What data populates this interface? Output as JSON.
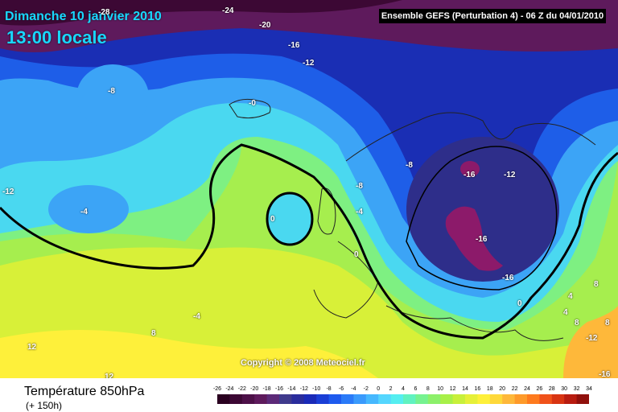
{
  "header": {
    "date": "Dimanche 10 janvier 2010",
    "time": "13:00 locale",
    "model": "Ensemble GEFS (Perturbation 4)  -  06 Z du 04/01/2010"
  },
  "copyright": "Copyright © 2008 Meteociel.fr",
  "footer": {
    "title": "Température 850hPa",
    "subtitle": "(+ 150h)"
  },
  "isotherm_labels": [
    {
      "text": "-28"
    },
    {
      "text": "-24"
    },
    {
      "text": "-20"
    },
    {
      "text": "-16"
    },
    {
      "text": "-12"
    },
    {
      "text": "-8"
    },
    {
      "text": "-0"
    },
    {
      "text": "-12"
    },
    {
      "text": "-4"
    },
    {
      "text": "0"
    },
    {
      "text": "-8"
    },
    {
      "text": "-16"
    },
    {
      "text": "-12"
    },
    {
      "text": "-8"
    },
    {
      "text": "-4"
    },
    {
      "text": "0"
    },
    {
      "text": "-16"
    },
    {
      "text": "-16"
    },
    {
      "text": "4"
    },
    {
      "text": "8"
    },
    {
      "text": "-4"
    },
    {
      "text": "8"
    },
    {
      "text": "12"
    },
    {
      "text": "12"
    },
    {
      "text": "0"
    },
    {
      "text": "4"
    },
    {
      "text": "8"
    },
    {
      "text": "-12"
    },
    {
      "text": "-16"
    },
    {
      "text": "8"
    }
  ],
  "legend": {
    "ticks": [
      "-26",
      "-24",
      "-22",
      "-20",
      "-18",
      "-16",
      "-14",
      "-12",
      "-10",
      "-8",
      "-6",
      "-4",
      "-2",
      "0",
      "2",
      "4",
      "6",
      "8",
      "10",
      "12",
      "14",
      "16",
      "18",
      "20",
      "22",
      "24",
      "26",
      "28",
      "30",
      "32",
      "34"
    ],
    "colors": [
      "#2a0020",
      "#3c0834",
      "#4d1048",
      "#5e1a5c",
      "#5c2a78",
      "#3f3a8c",
      "#2a2c9c",
      "#1a2ab8",
      "#1a3ed6",
      "#1e5aee",
      "#2a7af8",
      "#3a9afc",
      "#46b8fe",
      "#55d6fe",
      "#55eef0",
      "#60f2c0",
      "#76f290",
      "#8cf06a",
      "#a8f048",
      "#c8f03a",
      "#e6f038",
      "#fef03a",
      "#fed83a",
      "#feb83a",
      "#fe9a2a",
      "#fe7a1e",
      "#f0521a",
      "#d83412",
      "#b81c10",
      "#90100c"
    ]
  }
}
